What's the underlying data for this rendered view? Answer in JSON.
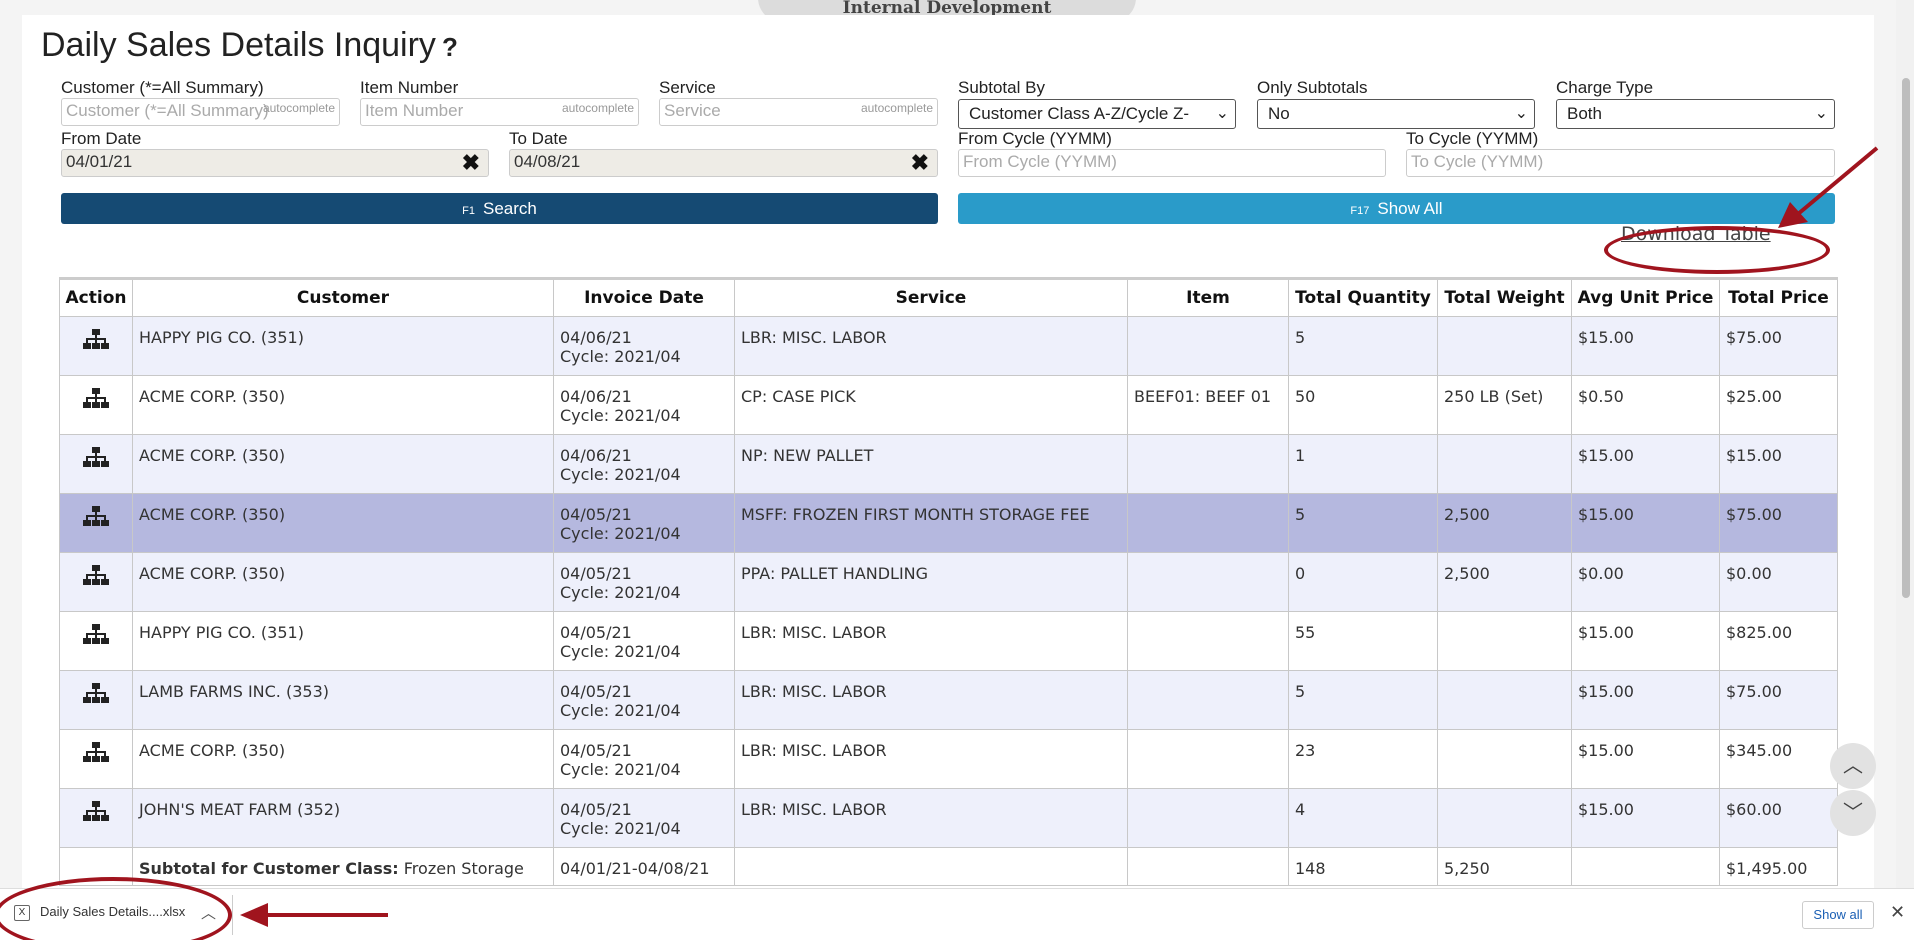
{
  "env_label": "Internal Development",
  "page_title": "Daily Sales Details Inquiry",
  "help_symbol": "?",
  "autocomplete_tag": "autocomplete",
  "filters": {
    "customer": {
      "label": "Customer (*=All Summary)",
      "placeholder": "Customer (*=All Summary)"
    },
    "item": {
      "label": "Item Number",
      "placeholder": "Item Number"
    },
    "service": {
      "label": "Service",
      "placeholder": "Service"
    },
    "subtotal_by": {
      "label": "Subtotal By",
      "value": "Customer Class A-Z/Cycle Z-"
    },
    "only_subtotals": {
      "label": "Only Subtotals",
      "value": "No"
    },
    "charge_type": {
      "label": "Charge Type",
      "value": "Both"
    },
    "from_date": {
      "label": "From Date",
      "value": "04/01/21"
    },
    "to_date": {
      "label": "To Date",
      "value": "04/08/21"
    },
    "from_cycle": {
      "label": "From Cycle (YYMM)",
      "placeholder": "From Cycle (YYMM)"
    },
    "to_cycle": {
      "label": "To Cycle (YYMM)",
      "placeholder": "To Cycle (YYMM)"
    }
  },
  "buttons": {
    "search_key": "F1",
    "search_label": "Search",
    "showall_key": "F17",
    "showall_label": "Show All",
    "download_label": "Download Table"
  },
  "table": {
    "headers": [
      "Action",
      "Customer",
      "Invoice Date",
      "Service",
      "Item",
      "Total Quantity",
      "Total Weight",
      "Avg Unit Price",
      "Total Price"
    ],
    "rows": [
      {
        "customer": "HAPPY PIG CO. (351)",
        "date": "04/06/21",
        "cycle": "Cycle: 2021/04",
        "service": "LBR: MISC. LABOR",
        "item": "",
        "qty": "5",
        "weight": "",
        "avg": "$15.00",
        "total": "$75.00"
      },
      {
        "customer": "ACME CORP. (350)",
        "date": "04/06/21",
        "cycle": "Cycle: 2021/04",
        "service": "CP: CASE PICK",
        "item": "BEEF01: BEEF 01",
        "qty": "50",
        "weight": "250 LB (Set)",
        "avg": "$0.50",
        "total": "$25.00"
      },
      {
        "customer": "ACME CORP. (350)",
        "date": "04/06/21",
        "cycle": "Cycle: 2021/04",
        "service": "NP: NEW PALLET",
        "item": "",
        "qty": "1",
        "weight": "",
        "avg": "$15.00",
        "total": "$15.00"
      },
      {
        "customer": "ACME CORP. (350)",
        "date": "04/05/21",
        "cycle": "Cycle: 2021/04",
        "service": "MSFF: FROZEN FIRST MONTH STORAGE FEE",
        "item": "",
        "qty": "5",
        "weight": "2,500",
        "avg": "$15.00",
        "total": "$75.00"
      },
      {
        "customer": "ACME CORP. (350)",
        "date": "04/05/21",
        "cycle": "Cycle: 2021/04",
        "service": "PPA: PALLET HANDLING",
        "item": "",
        "qty": "0",
        "weight": "2,500",
        "avg": "$0.00",
        "total": "$0.00"
      },
      {
        "customer": "HAPPY PIG CO. (351)",
        "date": "04/05/21",
        "cycle": "Cycle: 2021/04",
        "service": "LBR: MISC. LABOR",
        "item": "",
        "qty": "55",
        "weight": "",
        "avg": "$15.00",
        "total": "$825.00"
      },
      {
        "customer": "LAMB FARMS INC. (353)",
        "date": "04/05/21",
        "cycle": "Cycle: 2021/04",
        "service": "LBR: MISC. LABOR",
        "item": "",
        "qty": "5",
        "weight": "",
        "avg": "$15.00",
        "total": "$75.00"
      },
      {
        "customer": "ACME CORP. (350)",
        "date": "04/05/21",
        "cycle": "Cycle: 2021/04",
        "service": "LBR: MISC. LABOR",
        "item": "",
        "qty": "23",
        "weight": "",
        "avg": "$15.00",
        "total": "$345.00"
      },
      {
        "customer": "JOHN'S MEAT FARM (352)",
        "date": "04/05/21",
        "cycle": "Cycle: 2021/04",
        "service": "LBR: MISC. LABOR",
        "item": "",
        "qty": "4",
        "weight": "",
        "avg": "$15.00",
        "total": "$60.00"
      }
    ],
    "subtotal": {
      "label": "Subtotal for Customer Class:",
      "class": "Frozen Storage",
      "date_range": "04/01/21-04/08/21",
      "qty": "148",
      "weight": "5,250",
      "total": "$1,495.00"
    }
  },
  "download_bar": {
    "file_name": "Daily Sales Details....xlsx",
    "show_all": "Show all"
  },
  "colors": {
    "accent_dark": "#154a73",
    "accent_light": "#2a9bc9",
    "highlight": "#a0141e",
    "selected_row": "#b5b8df"
  },
  "icons": {
    "action": "hierarchy-icon",
    "clear": "clear-icon",
    "scroll_up": "chevron-up-icon",
    "scroll_down": "chevron-down-icon"
  }
}
